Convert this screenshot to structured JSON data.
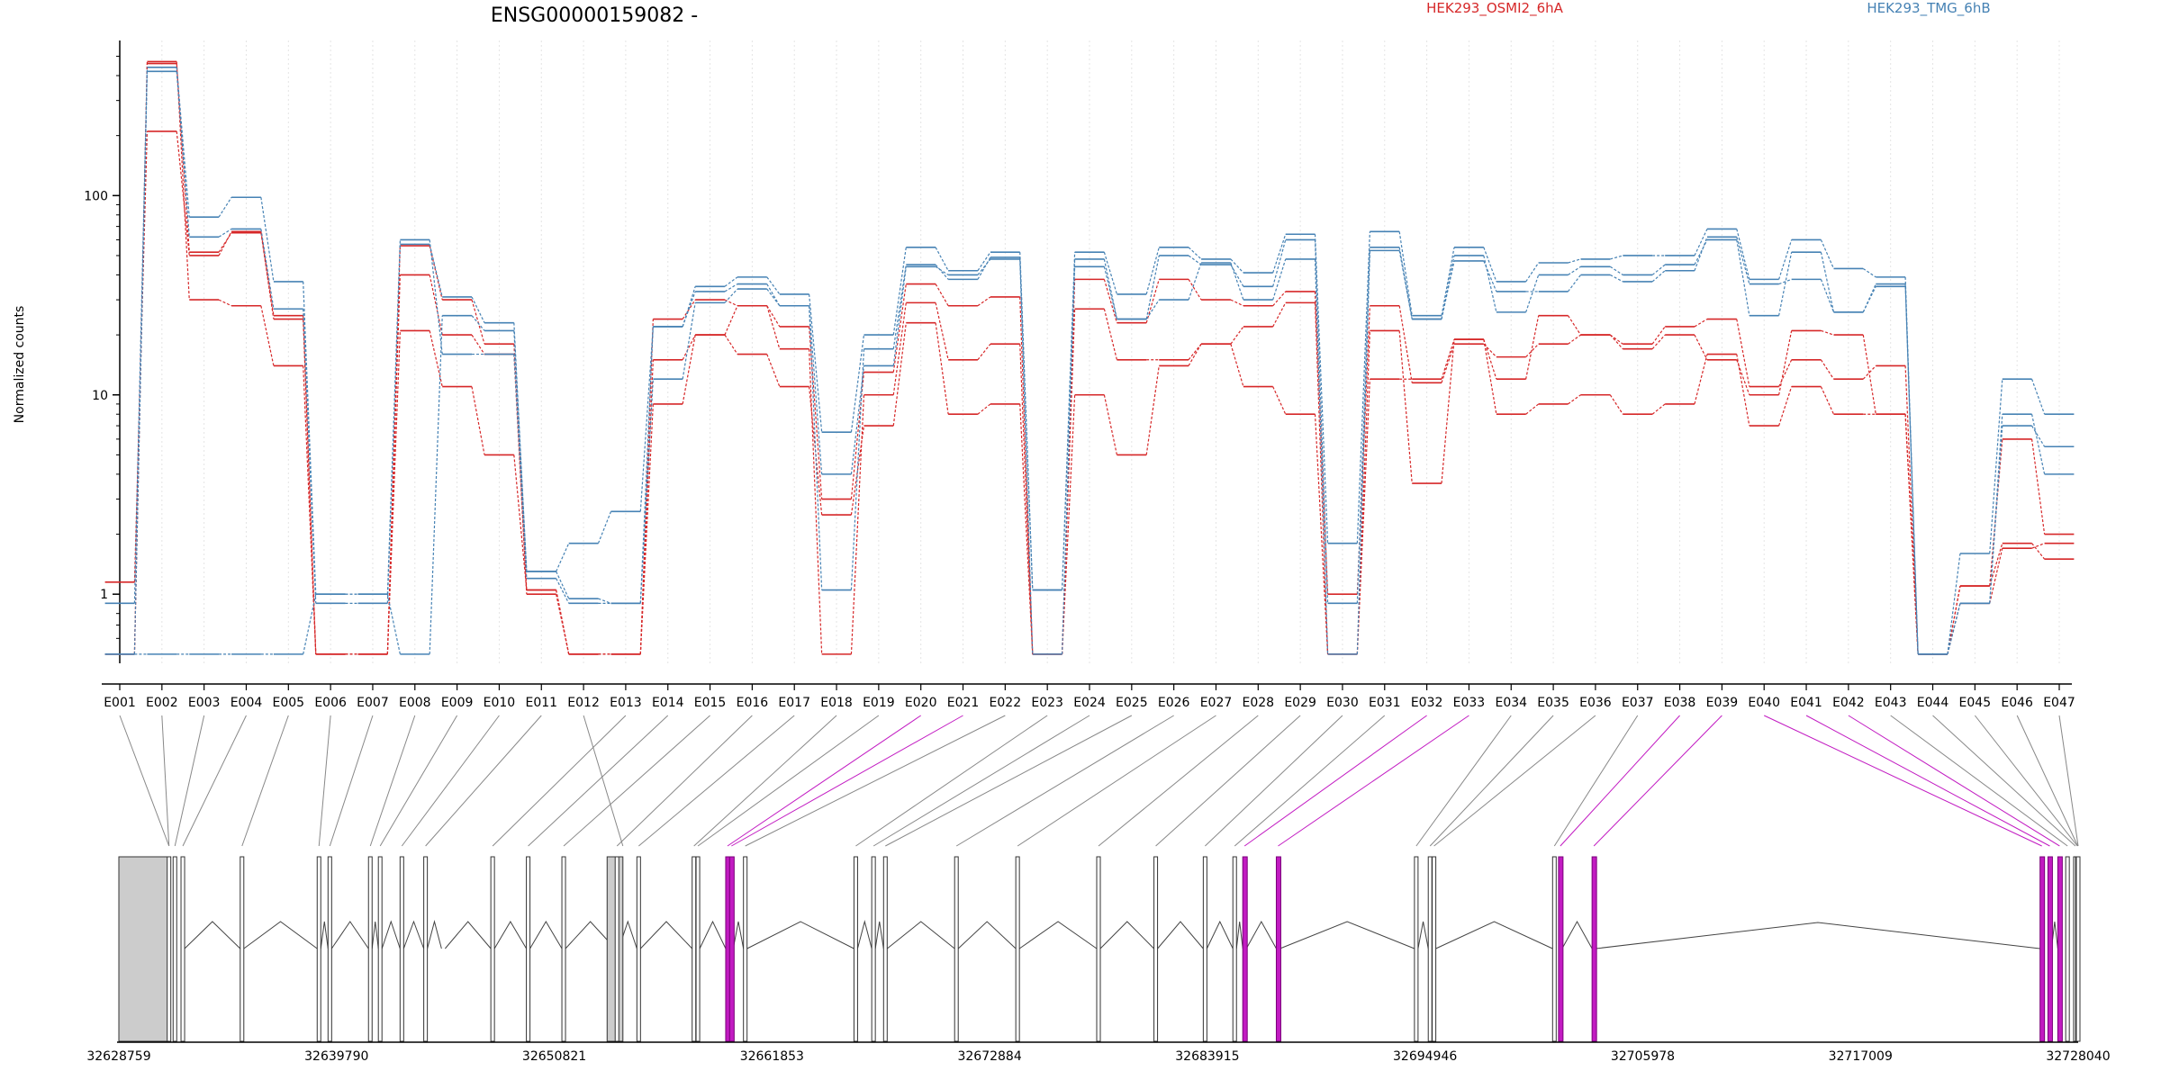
{
  "chart_data": {
    "type": "line",
    "title": "ENSG00000159082 -",
    "ylabel": "Normalized counts",
    "xlabel": "",
    "y_scale": "log",
    "ylim": [
      0.45,
      600
    ],
    "y_ticks": [
      1,
      10,
      100
    ],
    "y_tick_labels": [
      "1",
      "10",
      "100"
    ],
    "grid": "vertical dotted",
    "legend_placement": "top",
    "categories": [
      "E001",
      "E002",
      "E003",
      "E004",
      "E005",
      "E006",
      "E007",
      "E008",
      "E009",
      "E010",
      "E011",
      "E012",
      "E013",
      "E014",
      "E015",
      "E016",
      "E017",
      "E018",
      "E019",
      "E020",
      "E021",
      "E022",
      "E023",
      "E024",
      "E025",
      "E026",
      "E027",
      "E028",
      "E029",
      "E030",
      "E031",
      "E032",
      "E033",
      "E034",
      "E035",
      "E036",
      "E037",
      "E038",
      "E039",
      "E040",
      "E041",
      "E042",
      "E043",
      "E044",
      "E045",
      "E046",
      "E047"
    ],
    "conditions": [
      {
        "name": "HEK293_OSMI2_6hA",
        "color": "#d62728"
      },
      {
        "name": "HEK293_TMG_6hB",
        "color": "#4682b4"
      }
    ],
    "series": [
      {
        "condition": "HEK293_OSMI2_6hA",
        "values": [
          1.15,
          210,
          50,
          66,
          25,
          0.5,
          0.5,
          40,
          20,
          16,
          1.0,
          0.5,
          0.5,
          24,
          30,
          28,
          22,
          3.0,
          13,
          36,
          28,
          31,
          0.5,
          38,
          23,
          38,
          30,
          28,
          33,
          1.0,
          28,
          11.5,
          18,
          15.5,
          18,
          20,
          18,
          22,
          24,
          11,
          15,
          12,
          14,
          0.5,
          1.1,
          1.8,
          1.5
        ]
      },
      {
        "condition": "HEK293_OSMI2_6hA",
        "values": [
          0.5,
          460,
          52,
          65,
          24,
          0.5,
          0.5,
          56,
          30,
          18,
          1.05,
          0.5,
          0.5,
          15,
          20,
          28,
          17,
          0.5,
          10,
          29,
          15,
          18,
          0.5,
          27,
          15,
          15,
          18,
          22,
          29,
          0.5,
          21,
          3.6,
          19,
          12,
          25,
          20,
          17,
          20,
          15,
          10,
          21,
          20,
          8,
          0.5,
          0.9,
          1.7,
          1.8
        ]
      },
      {
        "condition": "HEK293_OSMI2_6hA",
        "values": [
          0.5,
          470,
          30,
          28,
          14,
          0.5,
          0.5,
          21,
          11,
          5,
          1.05,
          0.5,
          0.5,
          9,
          20,
          16,
          11,
          2.5,
          7,
          23,
          8,
          9,
          0.5,
          10,
          5,
          14,
          18,
          11,
          8,
          0.5,
          12,
          12,
          19,
          8,
          9,
          10,
          8,
          9,
          16,
          7,
          11,
          8,
          8,
          0.5,
          1.1,
          6,
          2.0
        ]
      },
      {
        "condition": "HEK293_TMG_6hB",
        "values": [
          0.9,
          440,
          78,
          98,
          37,
          1.0,
          1.0,
          57,
          31,
          23,
          1.3,
          1.8,
          2.6,
          22,
          35,
          39,
          32,
          6.5,
          20,
          55,
          42,
          52,
          1.05,
          52,
          32,
          55,
          48,
          41,
          64,
          1.8,
          66,
          25,
          55,
          37,
          46,
          48,
          50,
          50,
          68,
          38,
          60,
          43,
          39,
          0.5,
          1.6,
          12,
          8
        ]
      },
      {
        "condition": "HEK293_TMG_6hB",
        "values": [
          0.5,
          0.5,
          0.5,
          0.5,
          0.5,
          1.0,
          1.0,
          0.5,
          25,
          21,
          1.3,
          0.95,
          0.9,
          12,
          29,
          34,
          28,
          1.05,
          17,
          45,
          38,
          49,
          1.05,
          44,
          24,
          50,
          45,
          35,
          60,
          0.9,
          55,
          24,
          50,
          26,
          40,
          44,
          40,
          45,
          60,
          25,
          52,
          26,
          35,
          0.5,
          0.9,
          8,
          4
        ]
      },
      {
        "condition": "HEK293_TMG_6hB",
        "values": [
          0.5,
          420,
          62,
          68,
          27,
          0.9,
          0.9,
          60,
          16,
          16,
          1.2,
          0.9,
          0.9,
          22,
          33,
          36,
          28,
          4.0,
          14,
          44,
          40,
          48,
          0.5,
          48,
          24,
          30,
          46,
          30,
          48,
          0.5,
          53,
          24,
          47,
          33,
          33,
          40,
          37,
          42,
          62,
          36,
          38,
          26,
          36,
          0.5,
          0.9,
          7,
          5.5
        ]
      }
    ],
    "gene_model": {
      "axis_ticks": [
        32628759,
        32639790,
        32650821,
        32661853,
        32672884,
        32683915,
        32694946,
        32705978,
        32717009,
        32728040
      ],
      "axis_range": [
        32628759,
        32728040
      ],
      "highlight_color": "#c21bc2",
      "highlighted_exons": [
        "E020",
        "E021",
        "E032",
        "E033",
        "E038",
        "E039",
        "E040",
        "E041",
        "E042"
      ]
    }
  }
}
